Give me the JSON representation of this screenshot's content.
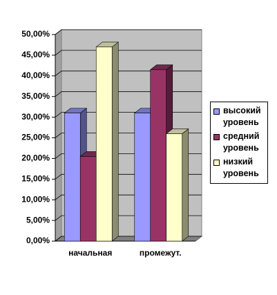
{
  "chart_data": {
    "type": "bar3d",
    "categories": [
      "начальная",
      "промежут."
    ],
    "series": [
      {
        "name": "высокий уровень",
        "color": "#9999ff",
        "values": [
          31,
          31
        ]
      },
      {
        "name": "средний уровень",
        "color": "#993366",
        "values": [
          20.5,
          41.5
        ]
      },
      {
        "name": "низкий уровень",
        "color": "#ffffcc",
        "values": [
          47,
          26
        ]
      }
    ],
    "ylim": [
      0,
      50
    ],
    "yticks": [
      {
        "value": 0,
        "label": "0,00%"
      },
      {
        "value": 5,
        "label": "5,00%"
      },
      {
        "value": 10,
        "label": "10,00%"
      },
      {
        "value": 15,
        "label": "15,00%"
      },
      {
        "value": 20,
        "label": "20,00%"
      },
      {
        "value": 25,
        "label": "25,00%"
      },
      {
        "value": 30,
        "label": "30,00%"
      },
      {
        "value": 35,
        "label": "35,00%"
      },
      {
        "value": 40,
        "label": "40,00%"
      },
      {
        "value": 45,
        "label": "45,00%"
      },
      {
        "value": 50,
        "label": "50,00%"
      }
    ],
    "grid": true,
    "legend": "right"
  }
}
